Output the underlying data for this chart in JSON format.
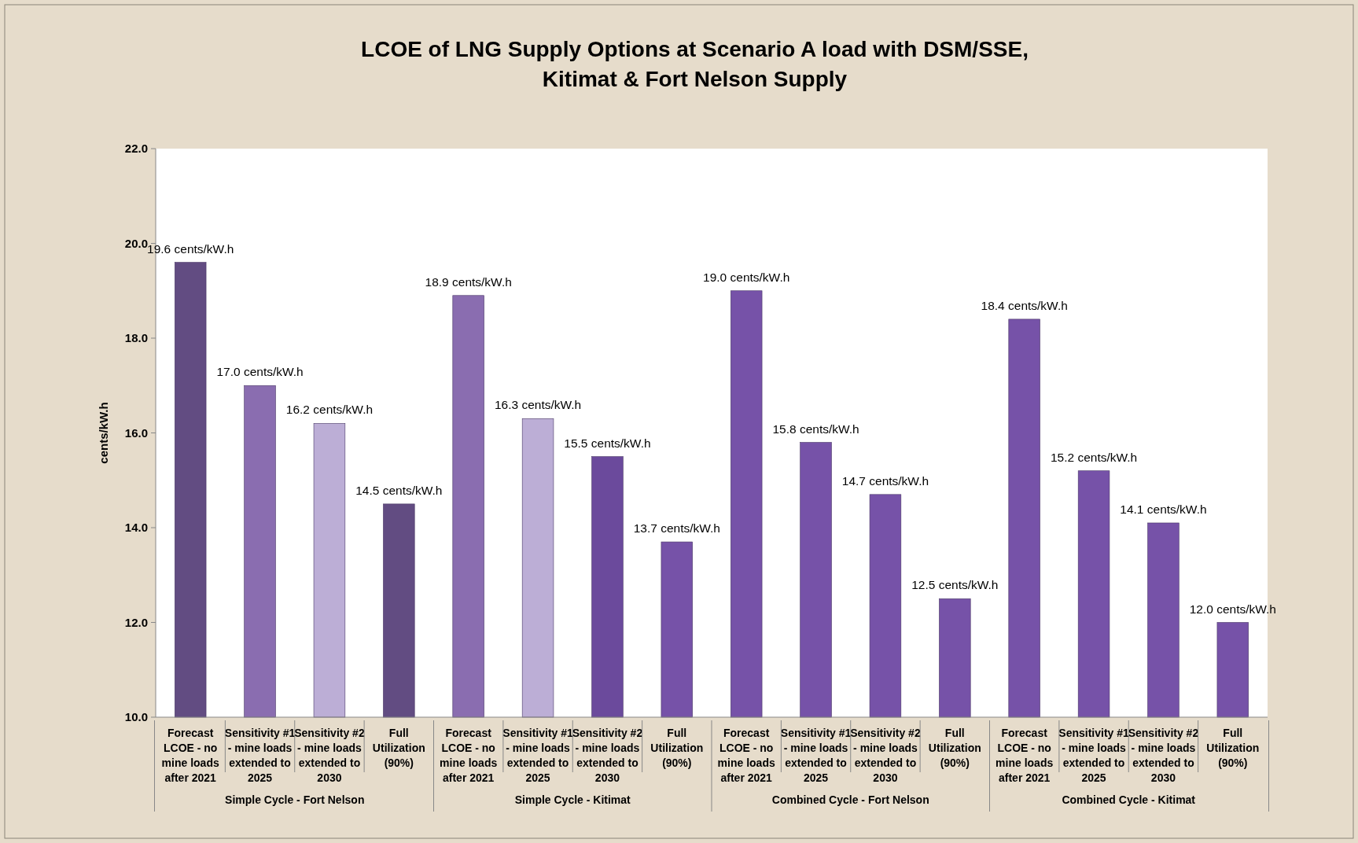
{
  "chart_data": {
    "type": "bar",
    "title": "LCOE of LNG Supply Options at Scenario A load with DSM/SSE, Kitimat & Fort Nelson Supply",
    "ylabel": "cents/kW.h",
    "categories": [
      "Forecast LCOE - no mine loads after 2021",
      "Sensitivity #1 - mine loads extended to 2025",
      "Sensitivity #2 - mine loads extended to 2030",
      "Full Utilization (90%)",
      "Forecast LCOE - no mine loads after 2021",
      "Sensitivity #1 - mine loads extended to 2025",
      "Sensitivity #2 - mine loads extended to 2030",
      "Full Utilization (90%)",
      "Forecast LCOE - no mine loads after 2021",
      "Sensitivity #1 - mine loads extended to 2025",
      "Sensitivity #2 - mine loads extended to 2030",
      "Full Utilization (90%)",
      "Forecast LCOE - no mine loads after 2021",
      "Sensitivity #1 - mine loads extended to 2025",
      "Sensitivity #2 - mine loads extended to 2030",
      "Full Utilization (90%)"
    ],
    "values": [
      19.6,
      17.0,
      16.2,
      14.5,
      18.9,
      16.3,
      15.5,
      13.7,
      19.0,
      15.8,
      14.7,
      12.5,
      18.4,
      15.2,
      14.1,
      12.0
    ],
    "value_labels": [
      "19.6 cents/kW.h",
      "17.0 cents/kW.h",
      "16.2 cents/kW.h",
      "14.5 cents/kW.h",
      "18.9 cents/kW.h",
      "16.3 cents/kW.h",
      "15.5 cents/kW.h",
      "13.7 cents/kW.h",
      "19.0 cents/kW.h",
      "15.8 cents/kW.h",
      "14.7 cents/kW.h",
      "12.5 cents/kW.h",
      "18.4 cents/kW.h",
      "15.2 cents/kW.h",
      "14.1 cents/kW.h",
      "12.0 cents/kW.h"
    ],
    "colors": [
      "#624c82",
      "#8a6db0",
      "#bcaed6",
      "#624c82",
      "#8a6db0",
      "#bcaed6",
      "#6b4a9c",
      "#7652a8",
      "#7652a8",
      "#7652a8",
      "#7652a8",
      "#7652a8",
      "#7652a8",
      "#7652a8",
      "#7652a8",
      "#7652a8"
    ],
    "annotations": [
      "Simple Cycle  - Fort Nelson",
      "Simple Cycle  - Kitimat",
      "Combined Cycle - Fort Nelson",
      "Combined Cycle - Kitimat"
    ],
    "ylim": [
      10,
      22
    ],
    "yticks": [
      {
        "value": 10,
        "label": "10.0"
      },
      {
        "value": 12,
        "label": "12.0"
      },
      {
        "value": 14,
        "label": "14.0"
      },
      {
        "value": 16,
        "label": "16.0"
      },
      {
        "value": 18,
        "label": "18.0"
      },
      {
        "value": 20,
        "label": "20.0"
      },
      {
        "value": 22,
        "label": "22.0"
      }
    ],
    "grid": false
  }
}
